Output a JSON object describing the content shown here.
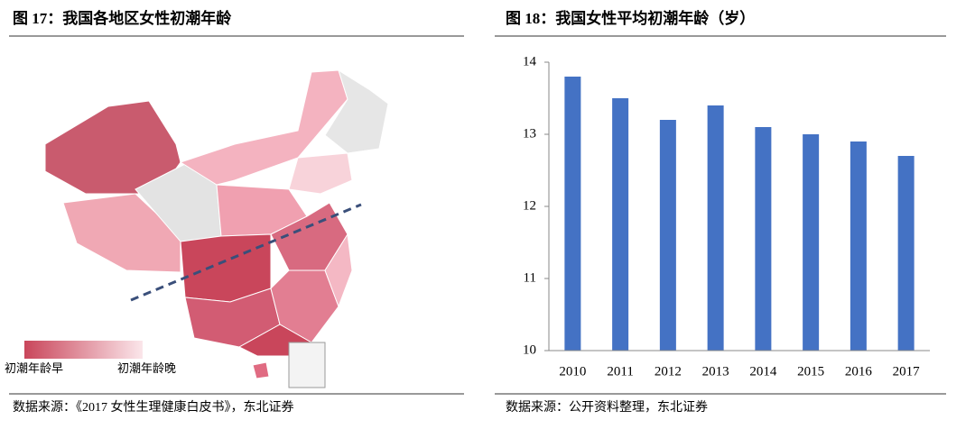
{
  "map_figure": {
    "title": "图 17：我国各地区女性初潮年龄",
    "legend_low": "初潮年龄早",
    "legend_high": "初潮年龄晚",
    "source": "数据来源：《2017 女性生理健康白皮书》，东北证券"
  },
  "chart_data": {
    "type": "bar",
    "title": "图 18：我国女性平均初潮年龄（岁）",
    "categories": [
      "2010",
      "2011",
      "2012",
      "2013",
      "2014",
      "2015",
      "2016",
      "2017"
    ],
    "values": [
      13.8,
      13.5,
      13.2,
      13.4,
      13.1,
      13.0,
      12.9,
      12.7
    ],
    "color": "#4472c4",
    "ylim": [
      10,
      14
    ],
    "yticks": [
      10,
      11,
      12,
      13,
      14
    ],
    "source": "数据来源：公开资料整理，东北证券"
  }
}
